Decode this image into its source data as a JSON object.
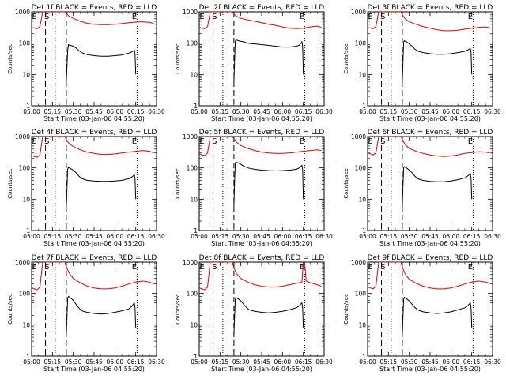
{
  "figure": {
    "xlabel": "Start Time (03-Jan-06 04:55:20)",
    "ylabel": "Counts/sec"
  },
  "axes": {
    "x_tick_labels": [
      "05:00",
      "05:15",
      "05:30",
      "05:45",
      "06:00",
      "06:15",
      "06:30"
    ],
    "x_tick_minutes": [
      0,
      15,
      30,
      45,
      60,
      75,
      90
    ],
    "x_range_minutes": [
      0,
      90
    ],
    "y_tick_labels": [
      "1",
      "10",
      "100",
      "1000"
    ],
    "y_range": [
      1,
      1000
    ],
    "y_scale": "log",
    "dashed_markers_minutes": [
      10,
      25
    ],
    "dotted_markers_minutes": [
      17,
      76
    ],
    "letter_markers": [
      {
        "label": "E",
        "minute": 2
      },
      {
        "label": "S",
        "minute": 11
      },
      {
        "label": "E",
        "minute": 74
      }
    ],
    "colors": {
      "events": "#000000",
      "lld": "#e00000"
    }
  },
  "chart_data": [
    {
      "type": "line",
      "title": "Det 1f BLACK = Events, RED = LLD",
      "series": [
        {
          "name": "LLD",
          "color": "#e00000",
          "x": [
            0,
            2,
            4,
            6,
            8,
            9,
            10,
            11,
            12,
            20,
            23,
            24,
            25,
            27,
            30,
            35,
            40,
            45,
            50,
            55,
            60,
            65,
            70,
            75,
            80,
            85,
            88
          ],
          "y": [
            320,
            300,
            290,
            340,
            1000,
            1000,
            1000,
            1000,
            1000,
            1000,
            1000,
            1000,
            900,
            720,
            620,
            500,
            430,
            400,
            390,
            390,
            400,
            420,
            450,
            470,
            480,
            460,
            430
          ]
        },
        {
          "name": "Events",
          "color": "#000000",
          "x": [
            25,
            25.5,
            26,
            26.5,
            27,
            28,
            30,
            32,
            34,
            36,
            40,
            45,
            50,
            55,
            60,
            65,
            70,
            72,
            74,
            74.5,
            75
          ],
          "y": [
            6,
            20,
            60,
            90,
            88,
            85,
            80,
            70,
            58,
            50,
            43,
            40,
            38,
            38,
            40,
            42,
            48,
            52,
            60,
            45,
            10
          ]
        }
      ]
    },
    {
      "type": "line",
      "title": "Det 2f BLACK = Events, RED = LLD",
      "series": [
        {
          "name": "LLD",
          "color": "#e00000",
          "x": [
            0,
            2,
            4,
            6,
            8,
            9,
            10,
            11,
            12,
            20,
            23,
            24,
            25,
            27,
            30,
            35,
            40,
            45,
            50,
            55,
            60,
            65,
            70,
            75,
            80,
            85,
            88
          ],
          "y": [
            320,
            300,
            290,
            340,
            1000,
            1000,
            1000,
            1000,
            1000,
            1000,
            1000,
            1000,
            850,
            720,
            620,
            550,
            500,
            450,
            400,
            370,
            330,
            300,
            290,
            300,
            330,
            350,
            320
          ]
        },
        {
          "name": "Events",
          "color": "#000000",
          "x": [
            25,
            25.5,
            26,
            26.5,
            27,
            28,
            30,
            32,
            35,
            40,
            45,
            50,
            55,
            60,
            65,
            70,
            72,
            74,
            74.5,
            75
          ],
          "y": [
            6,
            30,
            110,
            130,
            125,
            120,
            115,
            110,
            100,
            95,
            90,
            85,
            80,
            75,
            75,
            80,
            85,
            110,
            80,
            10
          ]
        }
      ]
    },
    {
      "type": "line",
      "title": "Det 3f BLACK = Events, RED = LLD",
      "series": [
        {
          "name": "LLD",
          "color": "#e00000",
          "x": [
            0,
            2,
            4,
            6,
            8,
            9,
            10,
            11,
            12,
            20,
            23,
            24,
            25,
            27,
            30,
            35,
            40,
            45,
            50,
            55,
            60,
            65,
            70,
            75,
            80,
            85,
            88
          ],
          "y": [
            320,
            300,
            290,
            340,
            1000,
            1000,
            1000,
            1000,
            1000,
            1000,
            1000,
            1000,
            800,
            600,
            480,
            400,
            340,
            300,
            270,
            250,
            250,
            260,
            280,
            300,
            320,
            330,
            310
          ]
        },
        {
          "name": "Events",
          "color": "#000000",
          "x": [
            25,
            25.5,
            26,
            26.5,
            27,
            28,
            30,
            32,
            34,
            36,
            40,
            45,
            50,
            55,
            60,
            65,
            70,
            72,
            74,
            74.5,
            75
          ],
          "y": [
            6,
            30,
            110,
            120,
            115,
            110,
            95,
            80,
            65,
            56,
            50,
            46,
            44,
            44,
            46,
            50,
            55,
            60,
            68,
            50,
            10
          ]
        }
      ]
    },
    {
      "type": "line",
      "title": "Det 4f BLACK = Events, RED = LLD",
      "series": [
        {
          "name": "LLD",
          "color": "#e00000",
          "x": [
            0,
            2,
            4,
            6,
            8,
            9,
            10,
            11,
            12,
            20,
            23,
            24,
            25,
            27,
            30,
            35,
            40,
            45,
            50,
            55,
            60,
            65,
            70,
            75,
            80,
            85,
            88
          ],
          "y": [
            250,
            230,
            220,
            260,
            1000,
            1000,
            1000,
            1000,
            1000,
            1000,
            1000,
            1000,
            800,
            600,
            480,
            380,
            320,
            290,
            270,
            270,
            280,
            300,
            320,
            340,
            360,
            340,
            300
          ]
        },
        {
          "name": "Events",
          "color": "#000000",
          "x": [
            25,
            25.5,
            26,
            26.5,
            27,
            28,
            30,
            32,
            34,
            36,
            40,
            45,
            50,
            55,
            60,
            65,
            70,
            72,
            74,
            74.5,
            75
          ],
          "y": [
            6,
            25,
            90,
            105,
            100,
            95,
            85,
            70,
            55,
            46,
            40,
            38,
            37,
            37,
            38,
            40,
            45,
            50,
            60,
            45,
            10
          ]
        }
      ]
    },
    {
      "type": "line",
      "title": "Det 5f BLACK = Events, RED = LLD",
      "series": [
        {
          "name": "LLD",
          "color": "#e00000",
          "x": [
            0,
            2,
            4,
            6,
            8,
            9,
            10,
            11,
            12,
            20,
            23,
            24,
            25,
            27,
            30,
            35,
            40,
            45,
            50,
            55,
            60,
            65,
            70,
            75,
            80,
            85,
            88
          ],
          "y": [
            280,
            260,
            250,
            300,
            1000,
            1000,
            1000,
            1000,
            1000,
            1000,
            1000,
            1000,
            850,
            650,
            520,
            420,
            360,
            320,
            300,
            290,
            290,
            300,
            320,
            340,
            360,
            380,
            360
          ]
        },
        {
          "name": "Events",
          "color": "#000000",
          "x": [
            25,
            25.5,
            26,
            26.5,
            27,
            28,
            30,
            32,
            35,
            40,
            45,
            50,
            55,
            60,
            65,
            70,
            72,
            74,
            74.5,
            75
          ],
          "y": [
            6,
            40,
            140,
            155,
            150,
            145,
            130,
            115,
            100,
            90,
            85,
            82,
            80,
            82,
            85,
            90,
            100,
            120,
            90,
            10
          ]
        }
      ]
    },
    {
      "type": "line",
      "title": "Det 6f BLACK = Events, RED = LLD",
      "series": [
        {
          "name": "LLD",
          "color": "#e00000",
          "x": [
            0,
            2,
            4,
            6,
            8,
            9,
            10,
            11,
            12,
            20,
            23,
            24,
            25,
            27,
            30,
            35,
            40,
            45,
            50,
            55,
            60,
            65,
            70,
            75,
            80,
            85,
            88
          ],
          "y": [
            300,
            280,
            260,
            300,
            1000,
            1000,
            1000,
            1000,
            1000,
            1000,
            1000,
            1000,
            800,
            560,
            420,
            340,
            290,
            260,
            240,
            230,
            240,
            260,
            290,
            310,
            330,
            320,
            300
          ]
        },
        {
          "name": "Events",
          "color": "#000000",
          "x": [
            25,
            25.5,
            26,
            26.5,
            27,
            28,
            30,
            32,
            34,
            36,
            40,
            45,
            50,
            55,
            60,
            65,
            70,
            72,
            74,
            74.5,
            75
          ],
          "y": [
            6,
            30,
            100,
            110,
            105,
            100,
            85,
            70,
            55,
            45,
            40,
            37,
            36,
            36,
            38,
            42,
            48,
            55,
            65,
            48,
            10
          ]
        }
      ]
    },
    {
      "type": "line",
      "title": "Det 7f BLACK = Events, RED = LLD",
      "series": [
        {
          "name": "LLD",
          "color": "#e00000",
          "x": [
            0,
            2,
            4,
            6,
            8,
            9,
            10,
            11,
            12,
            20,
            23,
            24,
            25,
            27,
            30,
            35,
            40,
            45,
            50,
            55,
            60,
            65,
            70,
            75,
            80,
            85,
            88
          ],
          "y": [
            150,
            140,
            130,
            160,
            1000,
            1000,
            1000,
            1000,
            1000,
            1000,
            1000,
            1000,
            700,
            450,
            300,
            220,
            170,
            150,
            140,
            140,
            150,
            170,
            200,
            230,
            250,
            230,
            200
          ]
        },
        {
          "name": "Events",
          "color": "#000000",
          "x": [
            25,
            25.5,
            26,
            26.5,
            27,
            28,
            30,
            32,
            34,
            36,
            40,
            45,
            50,
            55,
            60,
            65,
            70,
            72,
            74,
            74.5,
            75
          ],
          "y": [
            5,
            20,
            70,
            80,
            78,
            72,
            60,
            45,
            35,
            28,
            25,
            23,
            22,
            23,
            25,
            28,
            32,
            38,
            50,
            35,
            8
          ]
        }
      ]
    },
    {
      "type": "line",
      "title": "Det 8f BLACK = Events, RED = LLD",
      "series": [
        {
          "name": "LLD",
          "color": "#e00000",
          "x": [
            0,
            2,
            4,
            6,
            8,
            9,
            10,
            11,
            12,
            20,
            23,
            24,
            25,
            27,
            30,
            35,
            40,
            45,
            50,
            55,
            60,
            65,
            70,
            74,
            75,
            76,
            77,
            80,
            85,
            88
          ],
          "y": [
            150,
            140,
            130,
            160,
            1000,
            1000,
            1000,
            1000,
            1000,
            1000,
            1000,
            1000,
            650,
            420,
            300,
            230,
            190,
            170,
            160,
            160,
            170,
            190,
            210,
            230,
            1000,
            1000,
            250,
            220,
            190,
            170
          ]
        },
        {
          "name": "Events",
          "color": "#000000",
          "x": [
            25,
            25.5,
            26,
            26.5,
            27,
            28,
            30,
            32,
            34,
            36,
            40,
            45,
            50,
            55,
            60,
            65,
            70,
            72,
            74,
            74.5,
            75
          ],
          "y": [
            5,
            20,
            65,
            75,
            72,
            68,
            58,
            45,
            36,
            30,
            27,
            25,
            24,
            25,
            27,
            30,
            35,
            40,
            50,
            35,
            8
          ]
        }
      ]
    },
    {
      "type": "line",
      "title": "Det 9f BLACK = Events, RED = LLD",
      "series": [
        {
          "name": "LLD",
          "color": "#e00000",
          "x": [
            0,
            2,
            4,
            6,
            8,
            9,
            10,
            11,
            12,
            20,
            23,
            24,
            25,
            27,
            30,
            35,
            40,
            45,
            50,
            55,
            60,
            65,
            70,
            75,
            80,
            85,
            88
          ],
          "y": [
            160,
            150,
            140,
            170,
            1000,
            1000,
            1000,
            1000,
            1000,
            1000,
            1000,
            1000,
            700,
            420,
            280,
            210,
            170,
            150,
            140,
            140,
            150,
            170,
            200,
            230,
            250,
            230,
            210
          ]
        },
        {
          "name": "Events",
          "color": "#000000",
          "x": [
            25,
            25.5,
            26,
            26.5,
            27,
            28,
            30,
            32,
            34,
            36,
            40,
            45,
            50,
            55,
            60,
            65,
            70,
            72,
            74,
            74.5,
            75
          ],
          "y": [
            5,
            20,
            65,
            75,
            72,
            68,
            58,
            45,
            36,
            30,
            26,
            24,
            23,
            24,
            26,
            30,
            35,
            40,
            50,
            35,
            8
          ]
        }
      ]
    }
  ]
}
